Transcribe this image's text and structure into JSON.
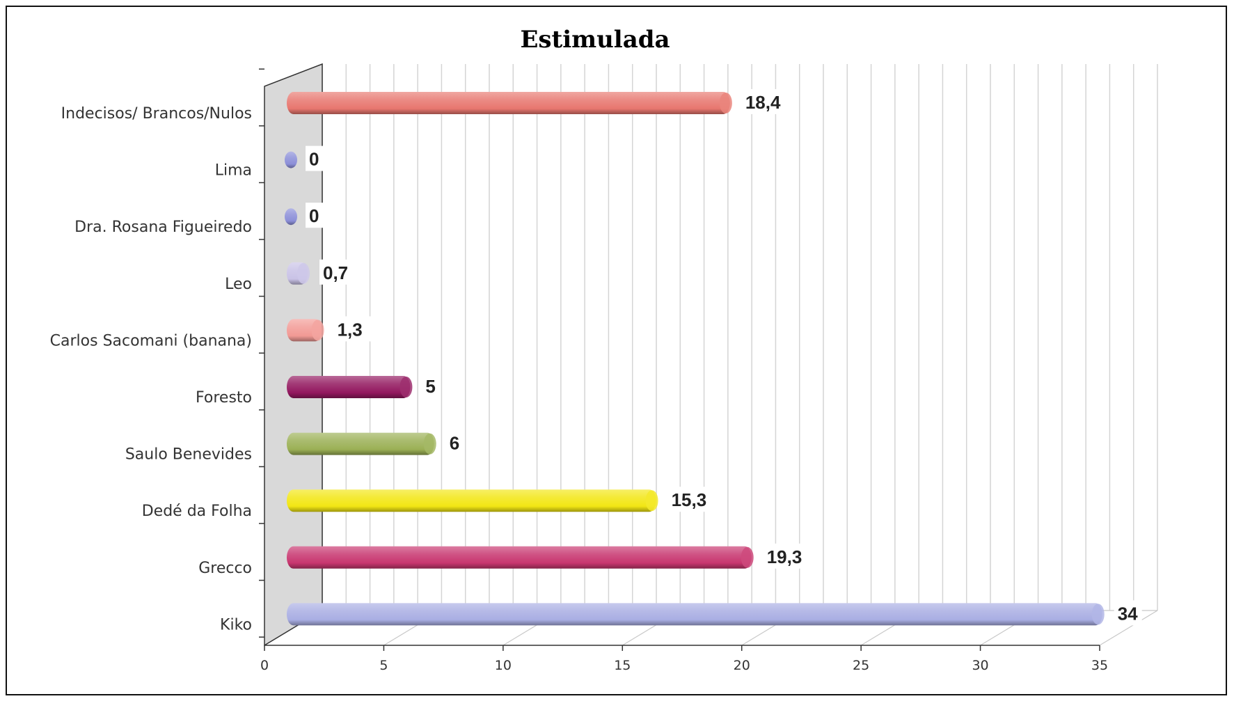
{
  "chart_data": {
    "type": "bar",
    "orientation": "horizontal",
    "title": "Estimulada",
    "xlim": [
      0,
      35
    ],
    "xticks": [
      0,
      5,
      10,
      15,
      20,
      25,
      30,
      35
    ],
    "grid": true,
    "categories": [
      "Indecisos/ Brancos/Nulos",
      "Lima",
      "Dra. Rosana Figueiredo",
      "Leo",
      "Carlos Sacomani (banana)",
      "Foresto",
      "Saulo Benevides",
      "Dedé da Folha",
      "Grecco",
      "Kiko"
    ],
    "values": [
      18.4,
      0,
      0,
      0.7,
      1.3,
      5,
      6,
      15.3,
      19.3,
      34
    ],
    "value_labels": [
      "18,4",
      "0",
      "0",
      "0,7",
      "1,3",
      "5",
      "6",
      "15,3",
      "19,3",
      "34"
    ],
    "colors": [
      "#e8776f",
      "#8c8fd8",
      "#8c8fd8",
      "#c9c2e6",
      "#f29a95",
      "#93185f",
      "#9bb055",
      "#f2e614",
      "#c8366f",
      "#a9aee3"
    ]
  }
}
